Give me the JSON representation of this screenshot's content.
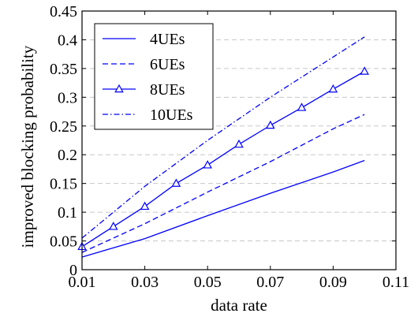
{
  "chart_data": {
    "type": "line",
    "title": "",
    "xlabel": "data rate",
    "ylabel": "improved blocking probability",
    "xlim": [
      0.01,
      0.11
    ],
    "ylim": [
      0,
      0.45
    ],
    "xticks": [
      0.01,
      0.03,
      0.05,
      0.07,
      0.09,
      0.11
    ],
    "xtick_labels": [
      "0.01",
      "0.03",
      "0.05",
      "0.07",
      "0.09",
      "0.11"
    ],
    "yticks": [
      0,
      0.05,
      0.1,
      0.15,
      0.2,
      0.25,
      0.3,
      0.35,
      0.4,
      0.45
    ],
    "ytick_labels": [
      "0",
      "0.05",
      "0.1",
      "0.15",
      "0.2",
      "0.25",
      "0.3",
      "0.35",
      "0.4",
      "0.45"
    ],
    "grid": {
      "horizontal": true,
      "vertical": false,
      "style": "dashed",
      "color": "#c8c8c8"
    },
    "legend_position": "top-left",
    "series_color": "#0000ff",
    "series": [
      {
        "name": "4UEs",
        "line_style": "solid",
        "marker": "none",
        "x": [
          0.01,
          0.03,
          0.05,
          0.07,
          0.09,
          0.1
        ],
        "y": [
          0.022,
          0.054,
          0.094,
          0.133,
          0.17,
          0.19
        ]
      },
      {
        "name": "6UEs",
        "line_style": "dashed",
        "marker": "none",
        "x": [
          0.01,
          0.03,
          0.05,
          0.07,
          0.09,
          0.1
        ],
        "y": [
          0.03,
          0.08,
          0.135,
          0.188,
          0.245,
          0.27
        ]
      },
      {
        "name": "8UEs",
        "line_style": "solid",
        "marker": "triangle",
        "x": [
          0.01,
          0.02,
          0.03,
          0.04,
          0.05,
          0.06,
          0.07,
          0.08,
          0.09,
          0.1
        ],
        "y": [
          0.04,
          0.075,
          0.11,
          0.15,
          0.182,
          0.218,
          0.251,
          0.282,
          0.314,
          0.345
        ]
      },
      {
        "name": "10UEs",
        "line_style": "dashdot",
        "marker": "none",
        "x": [
          0.01,
          0.03,
          0.05,
          0.07,
          0.09,
          0.1
        ],
        "y": [
          0.055,
          0.145,
          0.225,
          0.3,
          0.37,
          0.405
        ]
      }
    ]
  }
}
